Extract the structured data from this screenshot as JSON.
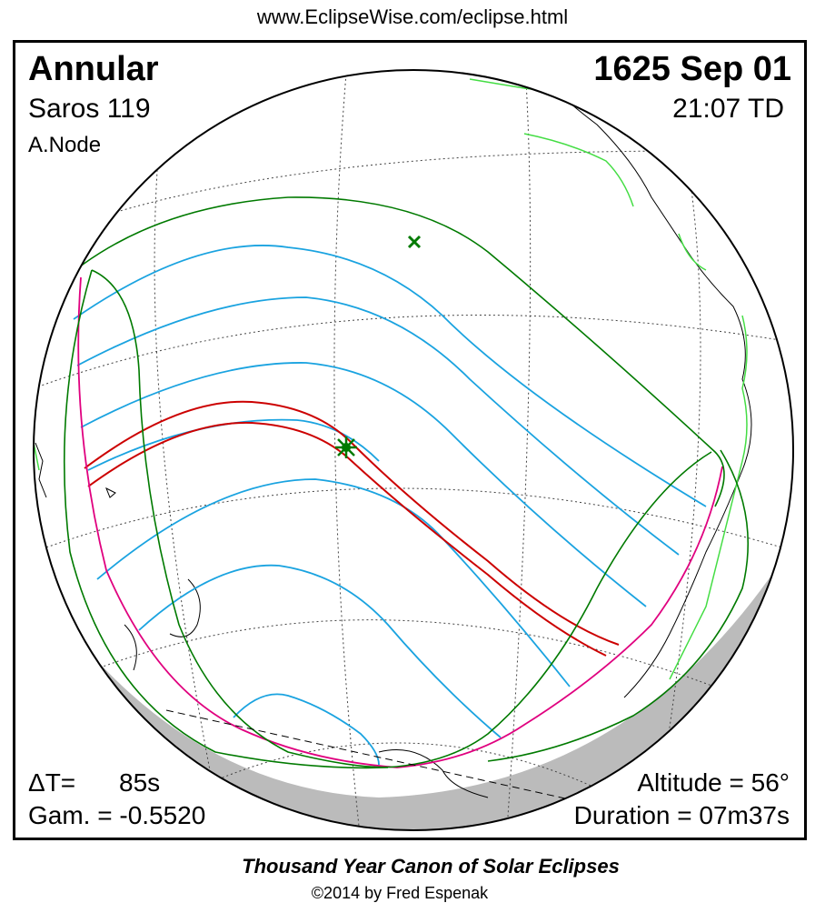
{
  "header": {
    "url": "www.EclipseWise.com/eclipse.html"
  },
  "eclipse": {
    "type": "Annular",
    "date": "1625 Sep 01",
    "saros": "Saros 119",
    "time": "21:07 TD",
    "node": "A.Node"
  },
  "stats": {
    "delta_t_label": "ΔT=",
    "delta_t_value": "85s",
    "gamma": "Gam. = -0.5520",
    "altitude": "Altitude = 56°",
    "duration": "Duration = 07m37s"
  },
  "footer": {
    "canon": "Thousand Year Canon of Solar Eclipses",
    "copyright": "©2014 by Fred Espenak"
  },
  "colors": {
    "penumbral_limit": "#007a00",
    "partial_contours": "#1aa3e0",
    "central_path": "#cc0000",
    "rise_set_curve": "#e0007f",
    "coastline_americas": "#44dd44",
    "night_shade": "#bbbbbb"
  },
  "markers": {
    "greatest_eclipse": "star-icon",
    "subsolar_point": "x-icon"
  }
}
